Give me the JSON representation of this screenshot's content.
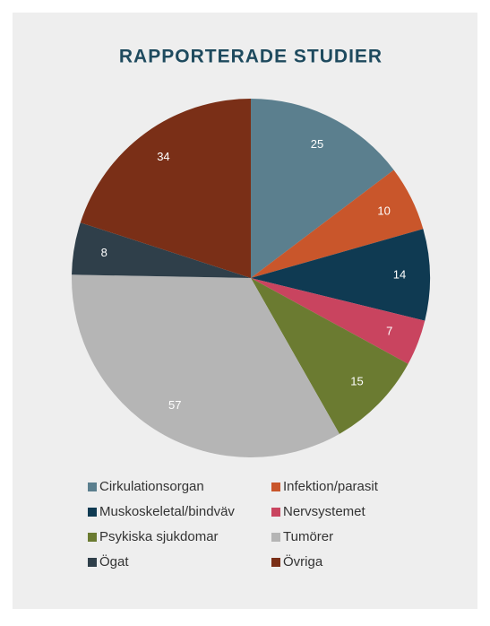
{
  "chart_data": {
    "type": "pie",
    "title": "RAPPORTERADE STUDIER",
    "categories": [
      "Cirkulationsorgan",
      "Infektion/parasit",
      "Muskoskeletal/bindväv",
      "Nervsystemet",
      "Psykiska sjukdomar",
      "Tumörer",
      "Ögat",
      "Övriga"
    ],
    "values": [
      25,
      10,
      14,
      7,
      15,
      57,
      8,
      34
    ],
    "colors": [
      "#5b7f8e",
      "#c9562b",
      "#0f3a52",
      "#c9445f",
      "#6b7b31",
      "#b5b5b5",
      "#2f3f4a",
      "#7a2f17"
    ],
    "legend": "bottom"
  }
}
